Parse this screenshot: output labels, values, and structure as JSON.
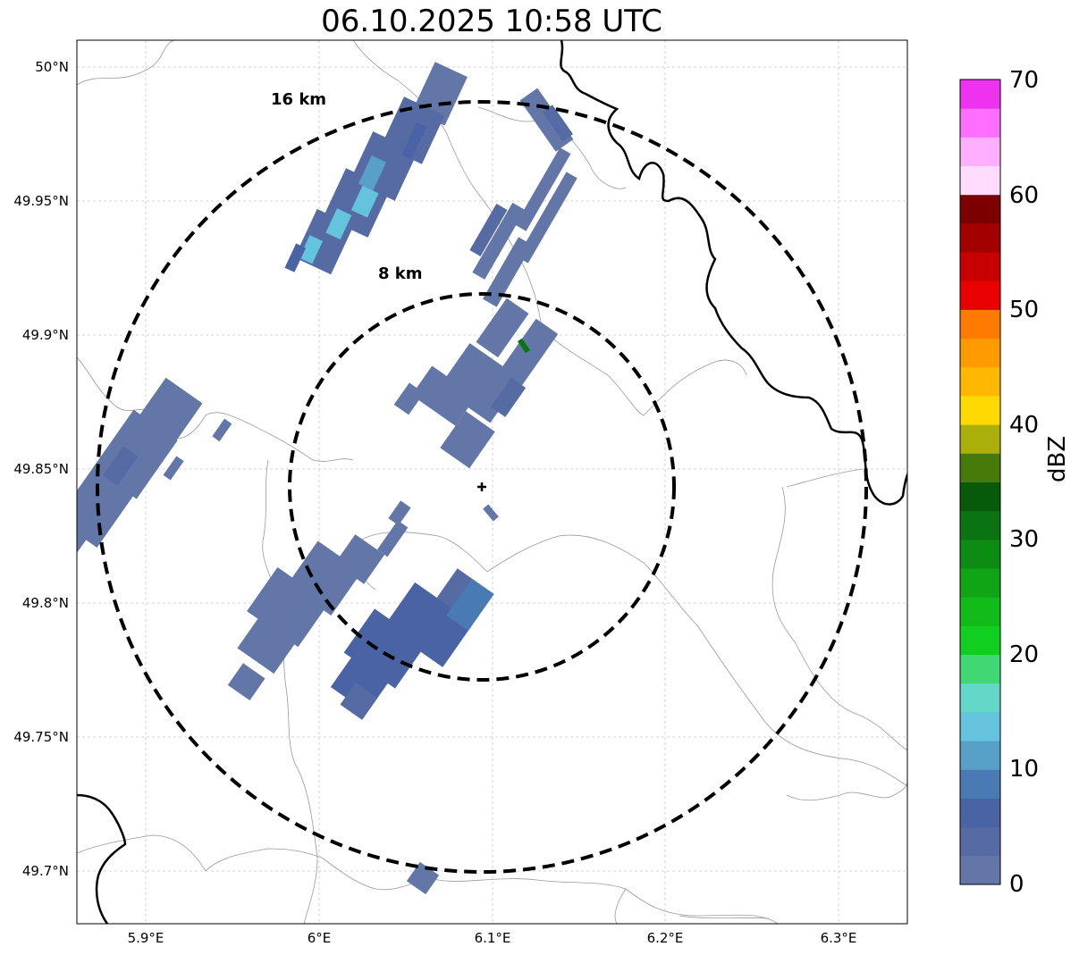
{
  "title": "06.10.2025 10:58 UTC",
  "map": {
    "lon_labels": [
      "5.9°E",
      "6°E",
      "6.1°E",
      "6.2°E",
      "6.3°E"
    ],
    "lat_labels": [
      "50°N",
      "49.95°N",
      "49.9°N",
      "49.85°N",
      "49.8°N",
      "49.75°N",
      "49.7°N"
    ],
    "lon_range": [
      5.86,
      6.34
    ],
    "lat_range": [
      49.68,
      50.01
    ],
    "radar_site": {
      "lon": 6.095,
      "lat": 49.843
    },
    "range_rings": [
      {
        "label": "8 km",
        "radius_km": 8
      },
      {
        "label": "16 km",
        "radius_km": 16
      }
    ]
  },
  "colorbar": {
    "label": "dBZ",
    "min": 0,
    "max": 70,
    "step": 2.5,
    "ticks": [
      "0",
      "10",
      "20",
      "30",
      "40",
      "50",
      "60",
      "70"
    ],
    "colors": [
      "#6376a8",
      "#566aa3",
      "#4a63a4",
      "#4a7ab3",
      "#59a0c8",
      "#64c4dd",
      "#63d8c8",
      "#3fd873",
      "#11cf20",
      "#11bb18",
      "#0fa514",
      "#0d8c14",
      "#0b7412",
      "#075a0a",
      "#467a09",
      "#abaf09",
      "#ffd900",
      "#ffb800",
      "#ff9a00",
      "#ff7a00",
      "#e90000",
      "#c80000",
      "#a30000",
      "#7c0000",
      "#ffdcfd",
      "#ffafff",
      "#ff6eff",
      "#ef32ef"
    ]
  },
  "colors": {
    "echo_low": "#6376a8",
    "echo_mid": "#4a63a4",
    "echo_light": "#64c4dd",
    "echo_green": "#0b7412",
    "border": "#9a9a9a",
    "country_border": "#000000"
  }
}
